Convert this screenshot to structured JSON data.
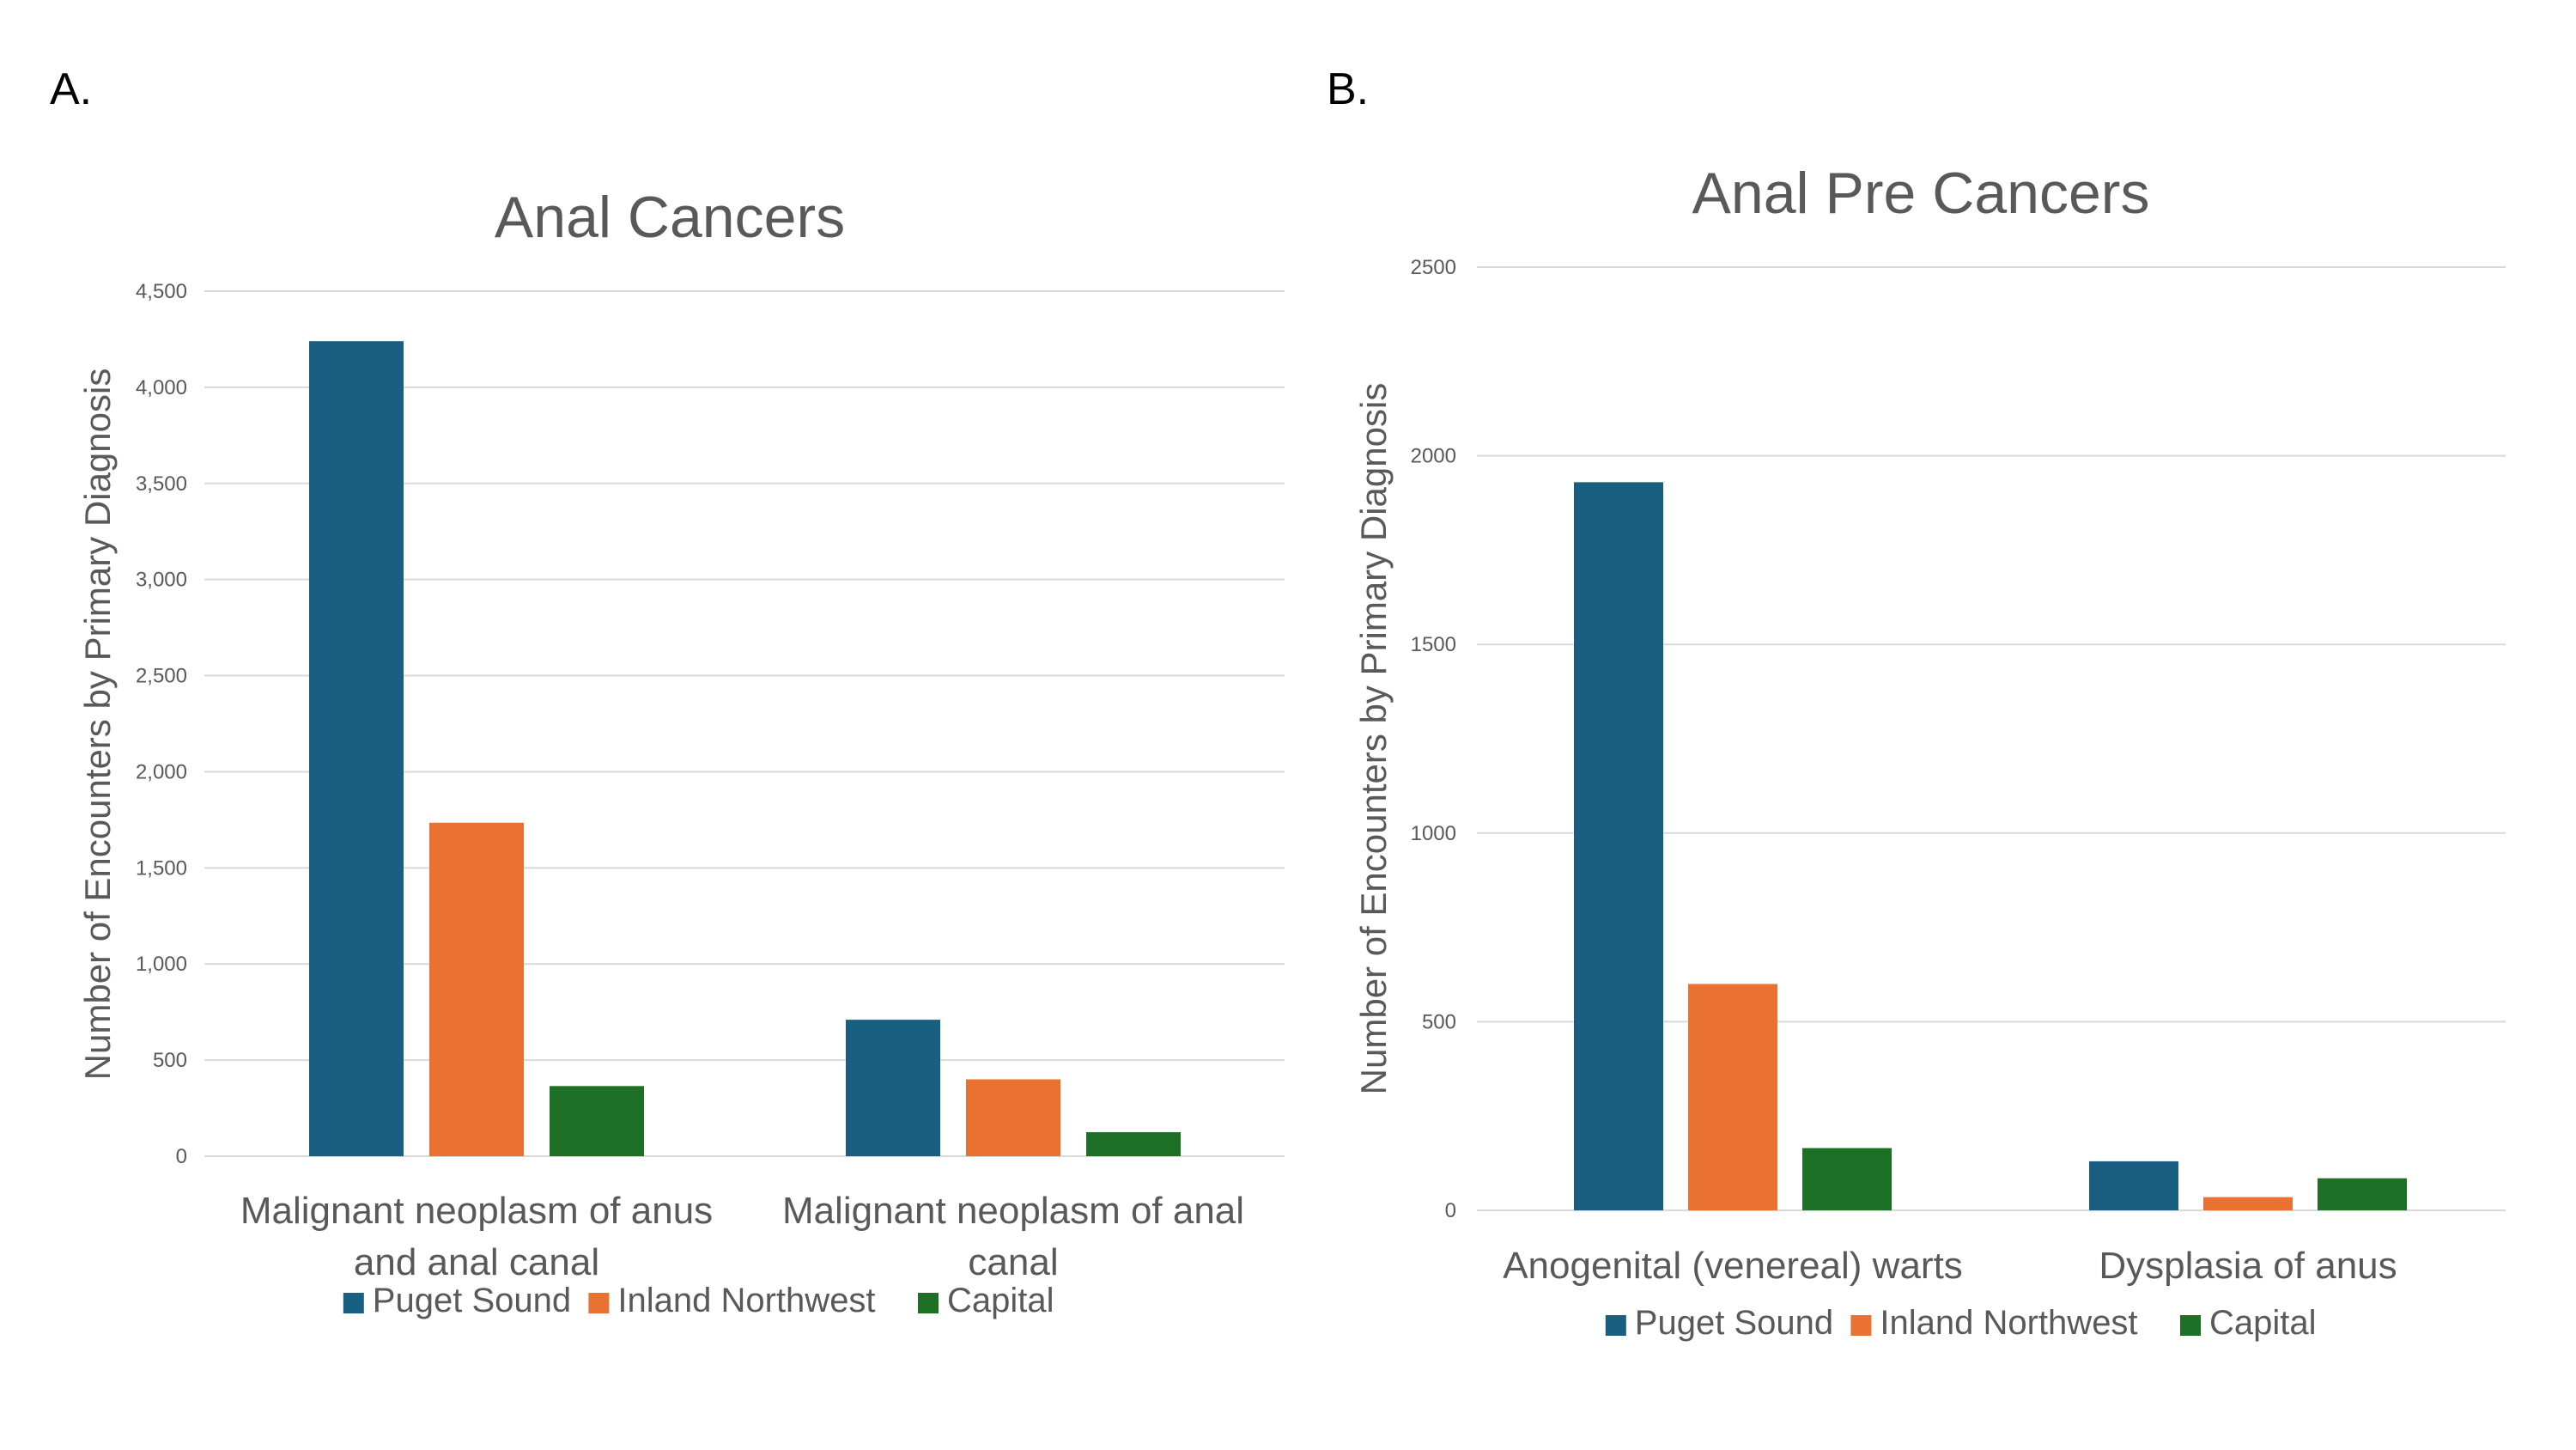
{
  "panels": {
    "a_label": "A.",
    "b_label": "B."
  },
  "colors": {
    "Puget Sound": "#185f82",
    "Inland Northwest": "#e97132",
    "Capital": "#1e7027"
  },
  "chart_data": [
    {
      "type": "bar",
      "title": "Anal Cancers",
      "xlabel": "",
      "ylabel": "Number of Encounters by Primary Diagnosis",
      "categories": [
        [
          "Malignant neoplasm of anus",
          "and anal canal"
        ],
        [
          "Malignant neoplasm of anal",
          "canal"
        ]
      ],
      "series": [
        {
          "name": "Puget Sound",
          "values": [
            4240,
            710
          ]
        },
        {
          "name": "Inland Northwest",
          "values": [
            1735,
            400
          ]
        },
        {
          "name": "Capital",
          "values": [
            365,
            125
          ]
        }
      ],
      "ylim": [
        0,
        4500
      ],
      "yticks": [
        "0",
        "500",
        "1,000",
        "1,500",
        "2,000",
        "2,500",
        "3,000",
        "3,500",
        "4,000",
        "4,500"
      ],
      "grid": true,
      "legend": "bottom"
    },
    {
      "type": "bar",
      "title": "Anal Pre Cancers",
      "xlabel": "",
      "ylabel": "Number of Encounters by Primary Diagnosis",
      "categories": [
        [
          "Anogenital (venereal) warts"
        ],
        [
          "Dysplasia of anus"
        ]
      ],
      "series": [
        {
          "name": "Puget Sound",
          "values": [
            1930,
            130
          ]
        },
        {
          "name": "Inland Northwest",
          "values": [
            600,
            35
          ]
        },
        {
          "name": "Capital",
          "values": [
            165,
            85
          ]
        }
      ],
      "ylim": [
        0,
        2500
      ],
      "yticks": [
        "0",
        "500",
        "1000",
        "1500",
        "2000",
        "2500"
      ],
      "grid": true,
      "legend": "bottom"
    }
  ]
}
